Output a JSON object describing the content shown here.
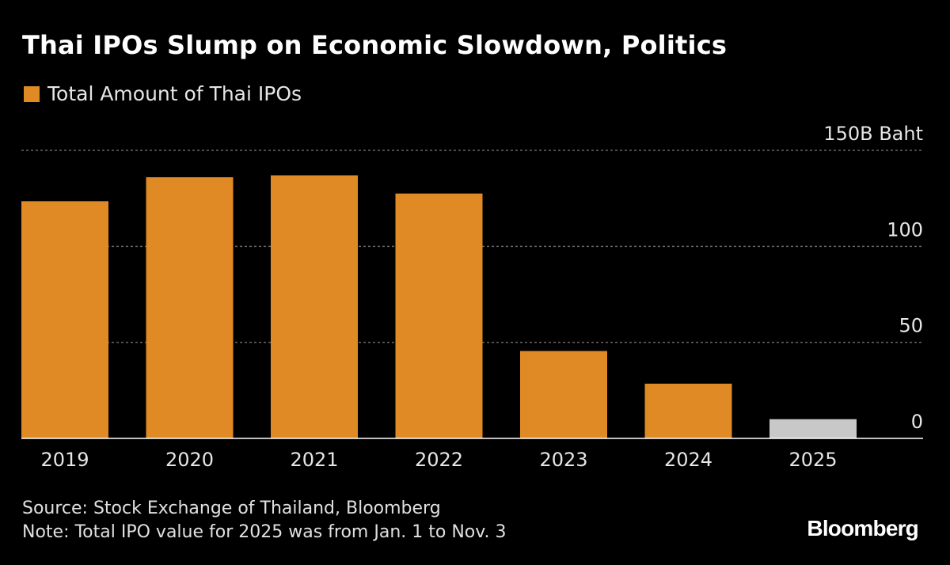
{
  "title": "Thai IPOs Slump on Economic Slowdown, Politics",
  "legend": {
    "label": "Total Amount of Thai IPOs",
    "color": "#df8a24"
  },
  "footer": {
    "source": "Source: Stock Exchange of Thailand, Bloomberg",
    "note": "Note: Total IPO value for 2025 was from Jan. 1 to Nov. 3"
  },
  "brand": "Bloomberg",
  "colors": {
    "bar": "#df8a24",
    "bar_partial": "#c8c8c8",
    "grid": "#666666",
    "background": "#000000"
  },
  "chart_data": {
    "type": "bar",
    "categories": [
      "2019",
      "2020",
      "2021",
      "2022",
      "2023",
      "2024",
      "2025"
    ],
    "values": [
      123.5,
      136,
      137,
      127.5,
      45.5,
      28.5,
      10
    ],
    "partial": [
      false,
      false,
      false,
      false,
      false,
      false,
      true
    ],
    "y_ticks": [
      {
        "value": 0,
        "label": "0"
      },
      {
        "value": 50,
        "label": "50"
      },
      {
        "value": 100,
        "label": "100"
      },
      {
        "value": 150,
        "label": "150B Baht"
      }
    ],
    "ylim": [
      0,
      150
    ],
    "grid": true,
    "y_axis_position": "right"
  }
}
